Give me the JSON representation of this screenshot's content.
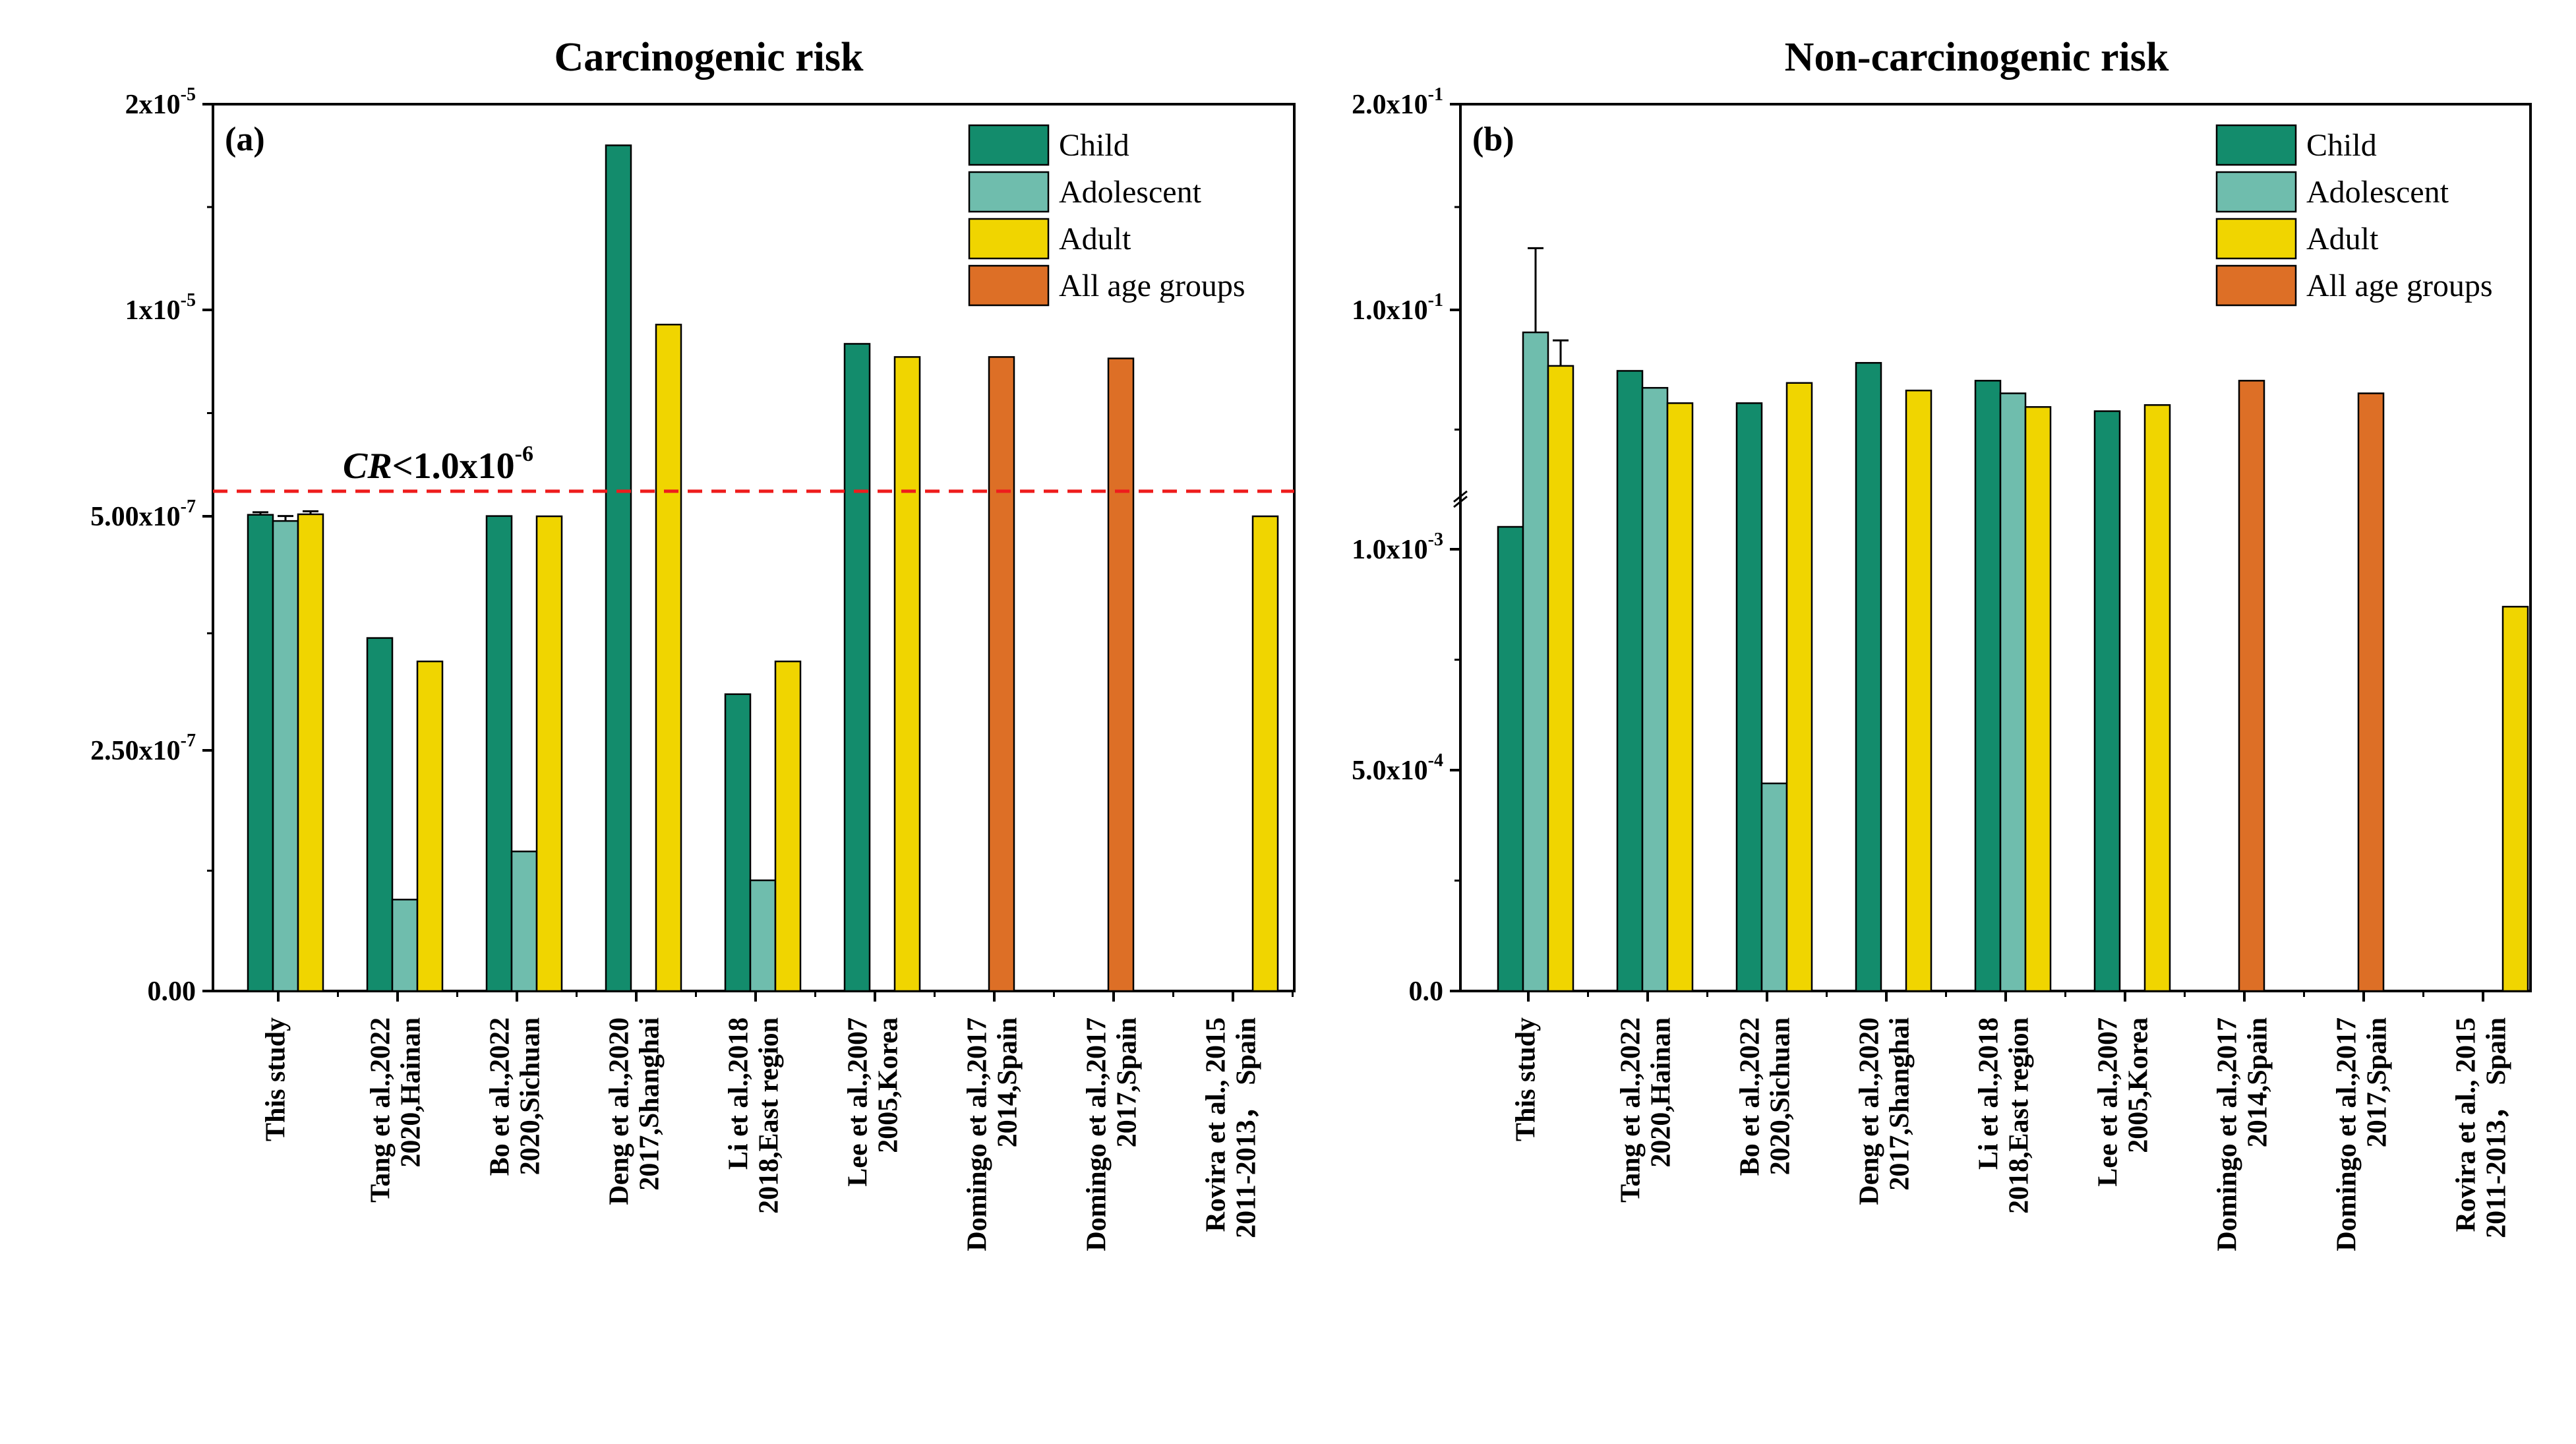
{
  "chart_data": [
    {
      "type": "bar",
      "panel_label": "(a)",
      "title": "Carcinogenic risk",
      "xlabel": "",
      "ylabel": "",
      "y_ticks": [
        {
          "base": "0.00",
          "exp": ""
        },
        {
          "base": "2.50x10",
          "exp": "-7"
        },
        {
          "base": "5.00x10",
          "exp": "-7"
        },
        {
          "base": "1x10",
          "exp": "-5"
        },
        {
          "base": "2x10",
          "exp": "-5"
        }
      ],
      "y_scale": "broken",
      "categories": [
        [
          "This study",
          ""
        ],
        [
          "Tang et al.,2022",
          "2020,Hainan"
        ],
        [
          "Bo et al.,2022",
          "2020,Sichuan"
        ],
        [
          "Deng et al.,2020",
          "2017,Shanghai"
        ],
        [
          "Li et al.,2018",
          "2018,East region"
        ],
        [
          "Lee et al.,2007",
          "2005,Korea"
        ],
        [
          "Domingo et al.,2017",
          "2014,Spain"
        ],
        [
          "Domingo et al.,2017",
          "2017,Spain"
        ],
        [
          "Rovira et al., 2015",
          "2011-2013， Spain"
        ]
      ],
      "series": [
        {
          "name": "Child",
          "color": "#138c6c",
          "values": [
            5.3e-07,
            3.7e-07,
            5.05e-07,
            1.8e-05,
            3.1e-07,
            6.5e-06,
            null,
            null,
            null
          ],
          "errors": [
            5.8e-07,
            null,
            null,
            null,
            null,
            null,
            null,
            null,
            null
          ]
        },
        {
          "name": "Adolescent",
          "color": "#6fbdad",
          "values": [
            4.95e-07,
            9.5e-08,
            1.45e-07,
            null,
            1.15e-07,
            null,
            null,
            null,
            null
          ],
          "errors": [
            5.05e-07,
            null,
            null,
            null,
            null,
            null,
            null,
            null,
            null
          ]
        },
        {
          "name": "Adult",
          "color": "#f0d500",
          "values": [
            5.4e-07,
            3.45e-07,
            5e-07,
            8.3e-06,
            3.45e-07,
            5.5e-06,
            null,
            null,
            5e-07
          ],
          "errors": [
            6e-07,
            null,
            null,
            null,
            null,
            null,
            null,
            null,
            null
          ]
        },
        {
          "name": "All age groups",
          "color": "#dd6f26",
          "values": [
            null,
            null,
            null,
            null,
            null,
            null,
            5.5e-06,
            5.4e-06,
            null
          ],
          "errors": [
            null,
            null,
            null,
            null,
            null,
            null,
            null,
            null,
            null
          ]
        }
      ],
      "threshold": {
        "value": 1e-06,
        "label_italic": "CR",
        "label_rest": "<1.0x10",
        "label_exp": "-6",
        "color": "#ee1c1c"
      },
      "legend_position": "top-right"
    },
    {
      "type": "bar",
      "panel_label": "(b)",
      "title": "Non-carcinogenic risk",
      "xlabel": "",
      "ylabel": "",
      "y_ticks": [
        {
          "base": "0.0",
          "exp": ""
        },
        {
          "base": "5.0x10",
          "exp": "-4"
        },
        {
          "base": "1.0x10",
          "exp": "-3"
        },
        {
          "base": "1.0x10",
          "exp": "-1"
        },
        {
          "base": "2.0x10",
          "exp": "-1"
        }
      ],
      "y_scale": "broken",
      "categories": [
        [
          "This study",
          ""
        ],
        [
          "Tang et al.,2022",
          "2020,Hainan"
        ],
        [
          "Bo et al.,2022",
          "2020,Sichuan"
        ],
        [
          "Deng et al.,2020",
          "2017,Shanghai"
        ],
        [
          "Li et al.,2018",
          "2018,East region"
        ],
        [
          "Lee et al.,2007",
          "2005,Korea"
        ],
        [
          "Domingo et al.,2017",
          "2014,Spain"
        ],
        [
          "Domingo et al.,2017",
          "2017,Spain"
        ],
        [
          "Rovira et al., 2015",
          "2011-2013， Spain"
        ]
      ],
      "series": [
        {
          "name": "Child",
          "color": "#138c6c",
          "values": [
            0.0011,
            0.025,
            0.012,
            0.03,
            0.02,
            0.01,
            null,
            null,
            null
          ],
          "errors": [
            null,
            null,
            null,
            null,
            null,
            null,
            null,
            null,
            null
          ]
        },
        {
          "name": "Adolescent",
          "color": "#6fbdad",
          "values": [
            0.06,
            0.017,
            0.00047,
            null,
            0.015,
            null,
            null,
            null,
            null
          ],
          "errors": [
            0.13,
            null,
            null,
            null,
            null,
            null,
            null,
            null,
            null
          ]
        },
        {
          "name": "Adult",
          "color": "#f0d500",
          "values": [
            0.028,
            0.012,
            0.019,
            0.016,
            0.011,
            0.0115,
            null,
            null,
            0.00087
          ],
          "errors": [
            0.05,
            null,
            null,
            null,
            null,
            null,
            null,
            null,
            null
          ]
        },
        {
          "name": "All age groups",
          "color": "#dd6f26",
          "values": [
            null,
            null,
            null,
            null,
            null,
            null,
            0.02,
            0.015,
            null
          ],
          "errors": [
            null,
            null,
            null,
            null,
            null,
            null,
            null,
            null,
            null
          ]
        }
      ],
      "legend_position": "top-right"
    }
  ]
}
